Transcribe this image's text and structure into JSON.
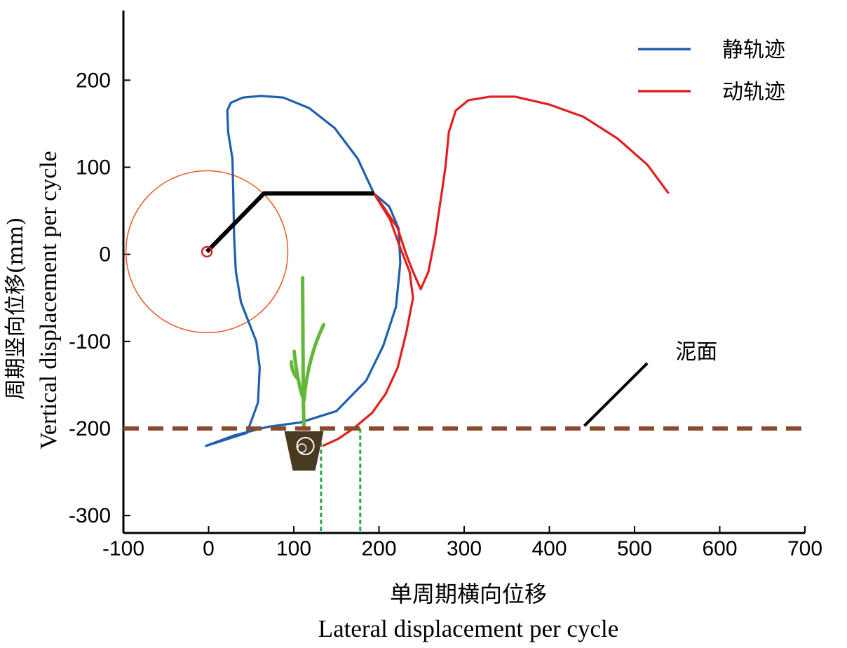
{
  "chart_data": {
    "type": "line",
    "xlabel_cn": "单周期横向位移",
    "xlabel_en": "Lateral displacement per cycle",
    "ylabel_cn": "周期竖向位移(mm)",
    "ylabel_en": "Vertical displacement per cycle",
    "xlim": [
      -100,
      700
    ],
    "ylim": [
      -320,
      280
    ],
    "x_ticks": [
      -100,
      0,
      100,
      200,
      300,
      400,
      500,
      600,
      700
    ],
    "y_ticks": [
      -300,
      -200,
      -100,
      0,
      100,
      200
    ],
    "legend_position": "top-right",
    "colors": {
      "static": "#1f5fae",
      "dynamic": "#e02020",
      "mud": "#8b4a2a",
      "link": "#000000",
      "guide": "#2aa84a",
      "circle": "#e85a2a",
      "seedling": "#63b83a",
      "pot": "#4a3a22"
    },
    "series": [
      {
        "name": "静轨迹",
        "color": "#1f5fae",
        "closed": true,
        "points": [
          [
            194,
            70
          ],
          [
            175,
            110
          ],
          [
            148,
            145
          ],
          [
            118,
            168
          ],
          [
            88,
            180
          ],
          [
            62,
            182
          ],
          [
            40,
            180
          ],
          [
            26,
            174
          ],
          [
            22,
            165
          ],
          [
            23,
            140
          ],
          [
            28,
            110
          ],
          [
            29,
            70
          ],
          [
            30,
            20
          ],
          [
            32,
            -20
          ],
          [
            38,
            -55
          ],
          [
            48,
            -80
          ],
          [
            56,
            -100
          ],
          [
            60,
            -130
          ],
          [
            58,
            -170
          ],
          [
            45,
            -205
          ],
          [
            -3,
            -220
          ],
          [
            30,
            -208
          ],
          [
            70,
            -198
          ],
          [
            108,
            -193
          ],
          [
            150,
            -180
          ],
          [
            185,
            -145
          ],
          [
            205,
            -105
          ],
          [
            220,
            -60
          ],
          [
            225,
            -10
          ],
          [
            223,
            30
          ],
          [
            212,
            55
          ],
          [
            194,
            70
          ]
        ]
      },
      {
        "name": "动轨迹",
        "color": "#e02020",
        "closed": false,
        "points": [
          [
            134,
            -220
          ],
          [
            152,
            -212
          ],
          [
            170,
            -200
          ],
          [
            192,
            -182
          ],
          [
            208,
            -160
          ],
          [
            222,
            -130
          ],
          [
            232,
            -90
          ],
          [
            240,
            -50
          ],
          [
            236,
            -20
          ],
          [
            224,
            10
          ],
          [
            213,
            40
          ],
          [
            194,
            70
          ],
          [
            205,
            55
          ],
          [
            222,
            30
          ],
          [
            232,
            0
          ],
          [
            240,
            -20
          ],
          [
            249,
            -40
          ],
          [
            258,
            -20
          ],
          [
            266,
            20
          ],
          [
            272,
            60
          ],
          [
            278,
            100
          ],
          [
            282,
            140
          ],
          [
            290,
            165
          ],
          [
            305,
            177
          ],
          [
            330,
            181
          ],
          [
            360,
            181
          ],
          [
            400,
            172
          ],
          [
            440,
            158
          ],
          [
            480,
            133
          ],
          [
            515,
            103
          ],
          [
            540,
            70
          ]
        ]
      }
    ],
    "crank": {
      "pivot": [
        -2,
        3
      ],
      "joint": [
        65,
        70
      ],
      "tip": [
        194,
        70
      ],
      "circle_radius": 95
    },
    "mud_surface_y": -200,
    "guide_lines_x": [
      132,
      178
    ],
    "seedling_x": 112,
    "annotation": {
      "label": "泥面",
      "text_position": [
        548,
        -120
      ],
      "pointer_from": [
        515,
        -125
      ],
      "pointer_to": [
        441,
        -197
      ]
    }
  }
}
